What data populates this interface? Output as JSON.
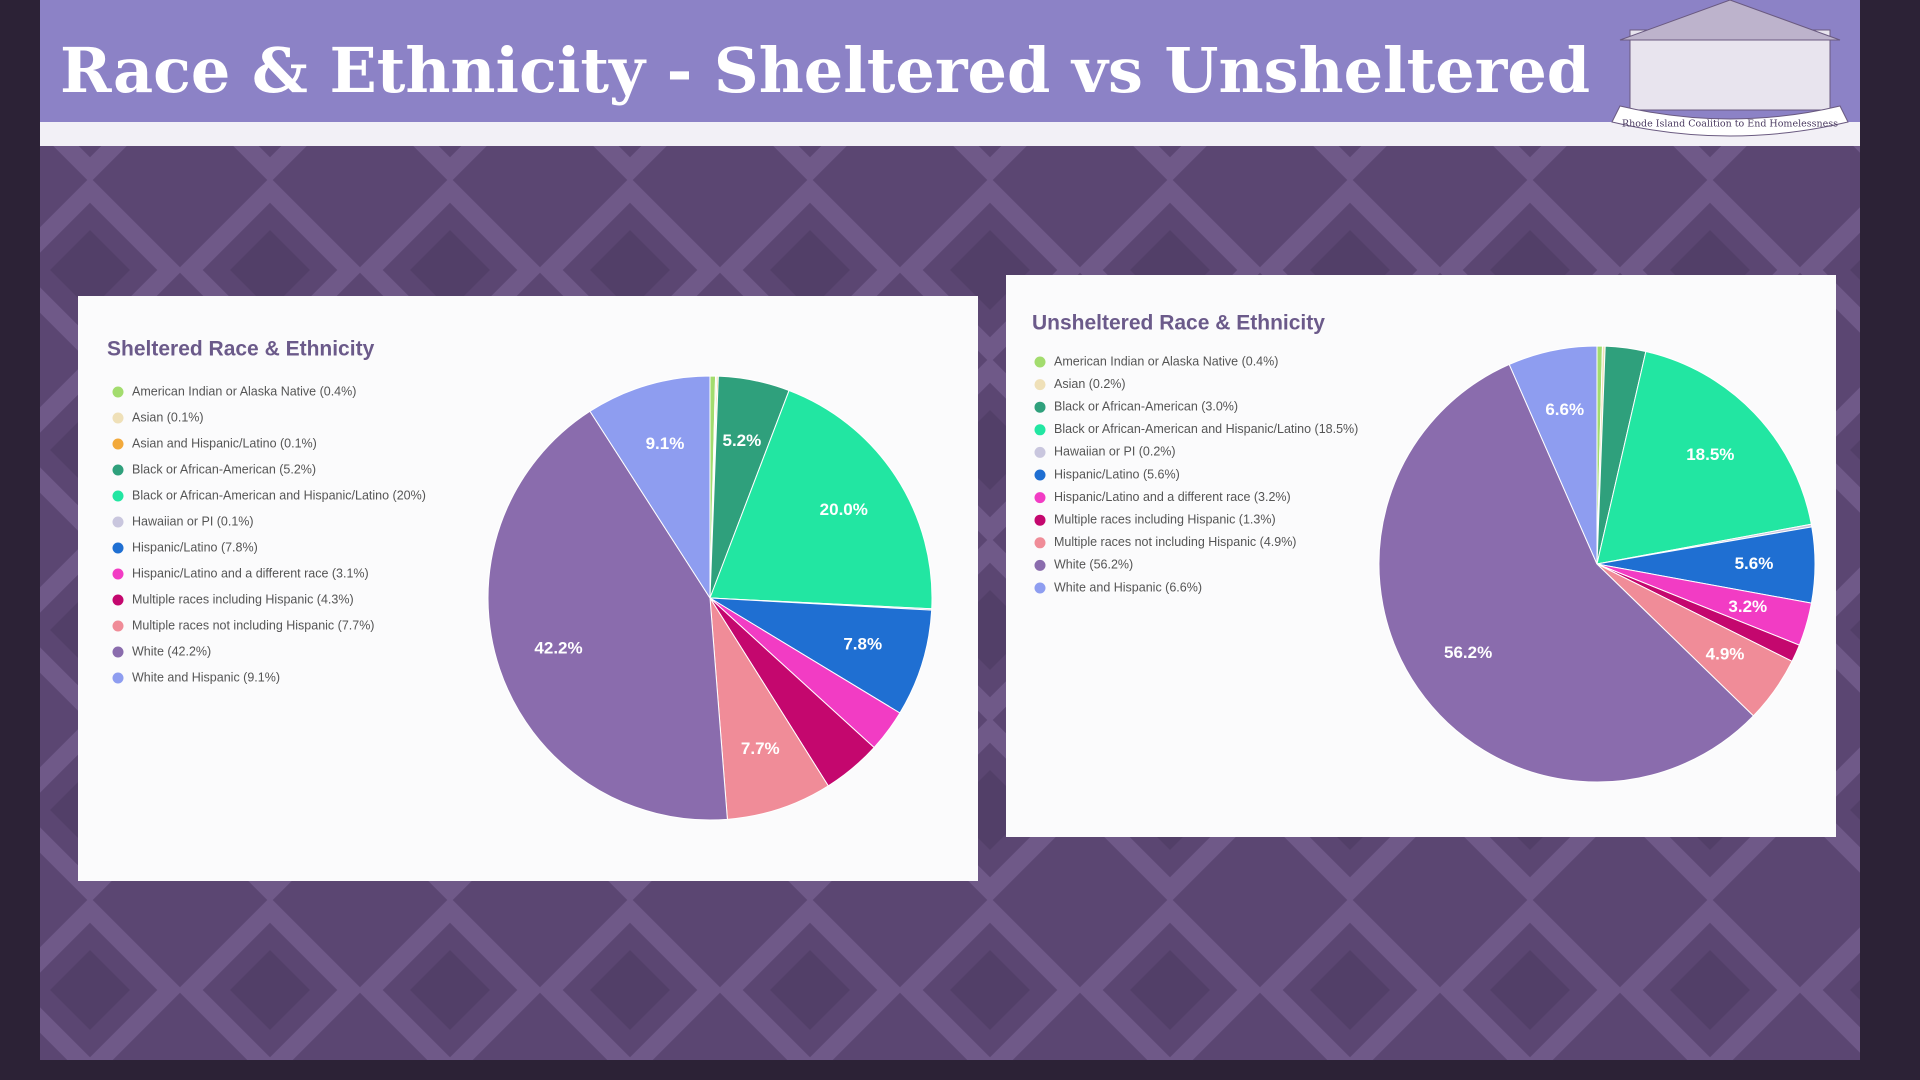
{
  "title": "Race & Ethnicity - Sheltered vs Unsheltered",
  "logo_text": "Rhode Island Coalition to End Homelessness",
  "chart_data": [
    {
      "type": "pie",
      "title": "Sheltered Race & Ethnicity",
      "categories": [
        "American Indian or Alaska Native (0.4%)",
        "Asian (0.1%)",
        "Asian and Hispanic/Latino (0.1%)",
        "Black or African-American (5.2%)",
        "Black or African-American and Hispanic/Latino (20%)",
        "Hawaiian or PI (0.1%)",
        "Hispanic/Latino (7.8%)",
        "Hispanic/Latino and a different race (3.1%)",
        "Multiple races including Hispanic (4.3%)",
        "Multiple races not including Hispanic (7.7%)",
        "White (42.2%)",
        "White and Hispanic (9.1%)"
      ],
      "values": [
        0.4,
        0.1,
        0.1,
        5.2,
        20.0,
        0.1,
        7.8,
        3.1,
        4.3,
        7.7,
        42.2,
        9.1
      ],
      "value_labels": [
        null,
        null,
        null,
        "5.2%",
        "20.0%",
        null,
        "7.8%",
        null,
        null,
        "7.7%",
        "42.2%",
        "9.1%"
      ],
      "colors": [
        "#a3dc6e",
        "#efe0b8",
        "#f2a93b",
        "#2fa07c",
        "#22e6a2",
        "#c9c6de",
        "#1f6fd2",
        "#f23cc4",
        "#c4076e",
        "#f08c98",
        "#8a6cad",
        "#8e9df0"
      ]
    },
    {
      "type": "pie",
      "title": "Unsheltered Race & Ethnicity",
      "categories": [
        "American Indian or Alaska Native (0.4%)",
        "Asian (0.2%)",
        "Black or African-American (3.0%)",
        "Black or African-American and Hispanic/Latino (18.5%)",
        "Hawaiian or PI (0.2%)",
        "Hispanic/Latino (5.6%)",
        "Hispanic/Latino and a different race (3.2%)",
        "Multiple races including Hispanic (1.3%)",
        "Multiple races not including Hispanic (4.9%)",
        "White (56.2%)",
        "White and Hispanic (6.6%)"
      ],
      "values": [
        0.4,
        0.2,
        3.0,
        18.5,
        0.2,
        5.6,
        3.2,
        1.3,
        4.9,
        56.2,
        6.6
      ],
      "value_labels": [
        null,
        null,
        null,
        "18.5%",
        null,
        "5.6%",
        "3.2%",
        null,
        "4.9%",
        "56.2%",
        "6.6%"
      ],
      "colors": [
        "#a3dc6e",
        "#efe0b8",
        "#2fa07c",
        "#22e6a2",
        "#c9c6de",
        "#1f6fd2",
        "#f23cc4",
        "#c4076e",
        "#f08c98",
        "#8a6cad",
        "#8e9df0"
      ]
    }
  ]
}
